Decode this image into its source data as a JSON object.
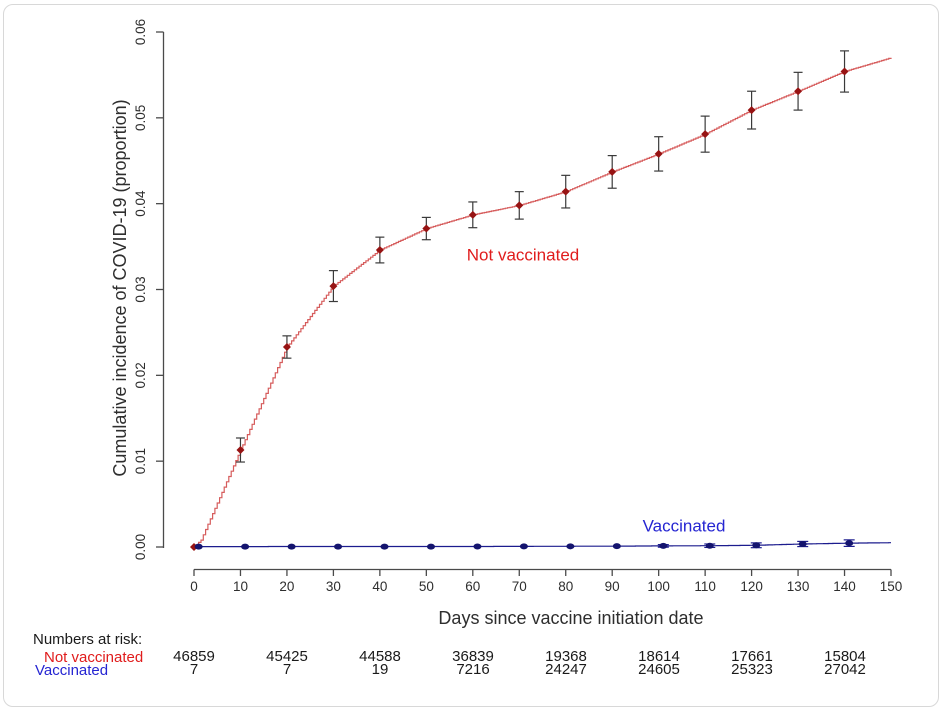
{
  "chart_data": {
    "type": "line",
    "subtype": "step_cumulative_incidence_with_error_bars",
    "title": "",
    "xlabel": "Days since vaccine initiation date",
    "ylabel": "Cumulative incidence of COVID-19 (proportion)",
    "xlim": [
      0,
      150
    ],
    "ylim": [
      0.0,
      0.06
    ],
    "grid": false,
    "legend_position": "inline-annotations",
    "xticks": [
      0,
      10,
      20,
      30,
      40,
      50,
      60,
      70,
      80,
      90,
      100,
      110,
      120,
      130,
      140,
      150
    ],
    "ytick_labels": [
      "0.00",
      "0.01",
      "0.02",
      "0.03",
      "0.04",
      "0.05",
      "0.06"
    ],
    "ytick_values": [
      0.0,
      0.01,
      0.02,
      0.03,
      0.04,
      0.05,
      0.06
    ],
    "series": [
      {
        "name": "Not vaccinated",
        "line_color": "#d65c5c",
        "marker_color": "#971313",
        "marker_shape": "diamond",
        "errorbar_color": "#3a3a3a",
        "label_color": "#e01c1c",
        "marker_days": [
          0,
          10,
          20,
          30,
          40,
          50,
          60,
          70,
          80,
          90,
          100,
          110,
          120,
          130,
          140
        ],
        "marker_values": [
          0,
          0.0113,
          0.0233,
          0.0304,
          0.0346,
          0.0371,
          0.0387,
          0.0398,
          0.0414,
          0.0437,
          0.0458,
          0.0481,
          0.0509,
          0.0531,
          0.0554
        ],
        "error_half": [
          0,
          0.0014,
          0.0013,
          0.0018,
          0.0015,
          0.0013,
          0.0015,
          0.0016,
          0.0019,
          0.0019,
          0.002,
          0.0021,
          0.0022,
          0.0022,
          0.0024
        ],
        "step_anchor_days": [
          0,
          1.5,
          10,
          20,
          30,
          40,
          50,
          60,
          70,
          80,
          90,
          100,
          110,
          120,
          130,
          140,
          150
        ],
        "step_anchor_values": [
          0,
          0.0008,
          0.0113,
          0.0233,
          0.0304,
          0.0346,
          0.0371,
          0.0387,
          0.0398,
          0.0414,
          0.0437,
          0.0458,
          0.0481,
          0.0509,
          0.0531,
          0.0554,
          0.057
        ]
      },
      {
        "name": "Vaccinated",
        "line_color": "#1c1c8e",
        "marker_color": "#14146e",
        "marker_shape": "circle",
        "errorbar_color": "#1c1c8e",
        "label_color": "#2525d2",
        "marker_days": [
          1,
          11,
          21,
          31,
          41,
          51,
          61,
          71,
          81,
          91,
          101,
          111,
          121,
          131,
          141
        ],
        "marker_values": [
          5e-05,
          5e-05,
          5e-05,
          5e-05,
          5e-05,
          5e-05,
          6e-05,
          7e-05,
          8e-05,
          0.0001,
          0.00013,
          0.00015,
          0.0002,
          0.00035,
          0.00045
        ],
        "error_half": [
          0,
          0,
          0,
          0,
          0,
          0,
          0,
          0,
          0,
          0,
          0.00015,
          0.0002,
          0.00028,
          0.0003,
          0.00038
        ],
        "step_anchor_days": [
          1,
          61,
          91,
          101,
          111,
          121,
          126,
          131,
          136,
          141,
          150
        ],
        "step_anchor_values": [
          5e-05,
          6e-05,
          0.0001,
          0.00013,
          0.00015,
          0.0002,
          0.00028,
          0.00035,
          0.0004,
          0.00045,
          0.0005
        ]
      }
    ],
    "at_risk": {
      "header": "Numbers at risk:",
      "days": [
        0,
        20,
        40,
        60,
        80,
        100,
        120,
        140
      ],
      "rows": [
        {
          "label": "Not vaccinated",
          "color": "#e01c1c",
          "values": [
            46859,
            45425,
            44588,
            36839,
            19368,
            18614,
            17661,
            15804
          ]
        },
        {
          "label": "Vaccinated",
          "color": "#2525d2",
          "values": [
            7,
            7,
            19,
            7216,
            24247,
            24605,
            25323,
            27042
          ]
        }
      ]
    }
  }
}
